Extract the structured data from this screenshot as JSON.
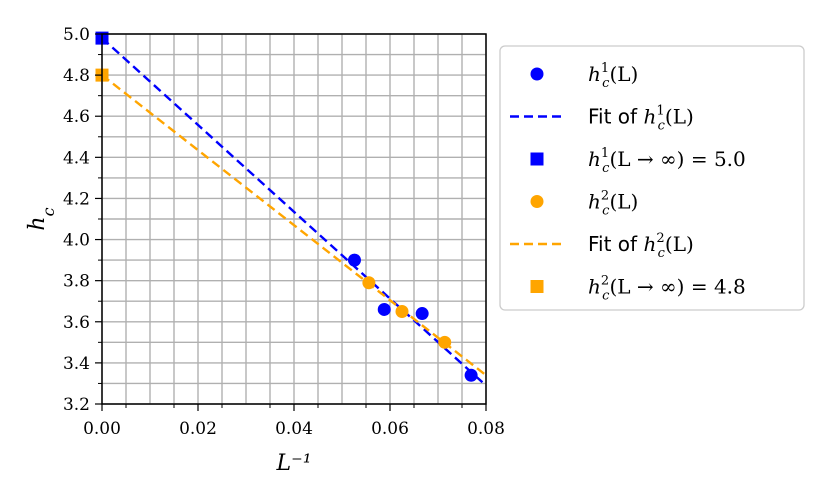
{
  "chart_data": {
    "type": "scatter",
    "title": "",
    "xlabel": "L⁻¹",
    "ylabel": "h_c",
    "xlim": [
      0.0,
      0.08
    ],
    "ylim": [
      3.2,
      5.0
    ],
    "x_ticks": [
      "0.00",
      "0.02",
      "0.04",
      "0.06",
      "0.08"
    ],
    "y_ticks": [
      "3.2",
      "3.4",
      "3.6",
      "3.8",
      "4.0",
      "4.2",
      "4.4",
      "4.6",
      "4.8",
      "5.0"
    ],
    "grid": true,
    "legend_placement": "outside-right",
    "series": [
      {
        "name": "h_c^1(L)",
        "kind": "points",
        "marker": "circle",
        "color": "#0000ff",
        "points": [
          [
            0.0526,
            3.9
          ],
          [
            0.0588,
            3.66
          ],
          [
            0.0667,
            3.64
          ],
          [
            0.0769,
            3.34
          ]
        ]
      },
      {
        "name": "Fit of h_c^1(L)",
        "kind": "line",
        "style": "dashed",
        "color": "#0000ff",
        "points": [
          [
            0.0,
            4.98
          ],
          [
            0.08,
            3.29
          ]
        ]
      },
      {
        "name": "h_c^1(L → ∞) = 5.0",
        "kind": "points",
        "marker": "square",
        "color": "#0000ff",
        "points": [
          [
            0.0,
            4.98
          ]
        ]
      },
      {
        "name": "h_c^2(L)",
        "kind": "points",
        "marker": "circle",
        "color": "#ffa500",
        "points": [
          [
            0.0556,
            3.79
          ],
          [
            0.0625,
            3.65
          ],
          [
            0.0714,
            3.5
          ]
        ]
      },
      {
        "name": "Fit of h_c^2(L)",
        "kind": "line",
        "style": "dashed",
        "color": "#ffa500",
        "points": [
          [
            0.0,
            4.8
          ],
          [
            0.08,
            3.34
          ]
        ]
      },
      {
        "name": "h_c^2(L → ∞) = 4.8",
        "kind": "points",
        "marker": "square",
        "color": "#ffa500",
        "points": [
          [
            0.0,
            4.8
          ]
        ]
      }
    ],
    "legend": [
      {
        "prefix": "",
        "math": "h",
        "sub": "c",
        "sup": "1",
        "tail": "(L)",
        "marker": "circle",
        "color": "#0000ff"
      },
      {
        "prefix": "Fit of ",
        "math": "h",
        "sub": "c",
        "sup": "1",
        "tail": "(L)",
        "marker": "dash",
        "color": "#0000ff"
      },
      {
        "prefix": "",
        "math": "h",
        "sub": "c",
        "sup": "1",
        "tail": "(L → ∞) = 5.0",
        "marker": "square",
        "color": "#0000ff"
      },
      {
        "prefix": "",
        "math": "h",
        "sub": "c",
        "sup": "2",
        "tail": "(L)",
        "marker": "circle",
        "color": "#ffa500"
      },
      {
        "prefix": "Fit of ",
        "math": "h",
        "sub": "c",
        "sup": "2",
        "tail": "(L)",
        "marker": "dash",
        "color": "#ffa500"
      },
      {
        "prefix": "",
        "math": "h",
        "sub": "c",
        "sup": "2",
        "tail": "(L → ∞) = 4.8",
        "marker": "square",
        "color": "#ffa500"
      }
    ]
  }
}
